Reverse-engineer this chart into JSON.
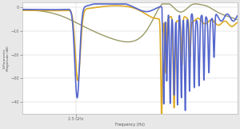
{
  "xlabel": "Frequency (Hz)",
  "ylabel": "S-Parameter\nMagnitude (dB)",
  "xlim": [
    0,
    10000000000.0
  ],
  "ylim": [
    -45,
    2
  ],
  "yticks": [
    0,
    -10,
    -20,
    -30,
    -40
  ],
  "xtick_val": 2500000000.0,
  "xtick_label": "2.5 GHz",
  "background_color": "#e8e8e8",
  "plot_bg_color": "#ffffff",
  "grid_color": "#d0d0d0",
  "line_blue": "#5566cc",
  "line_yellow": "#ddaa22",
  "line_olive": "#999966",
  "lw_blue": 1.2,
  "lw_yellow": 1.2,
  "lw_olive": 1.0
}
